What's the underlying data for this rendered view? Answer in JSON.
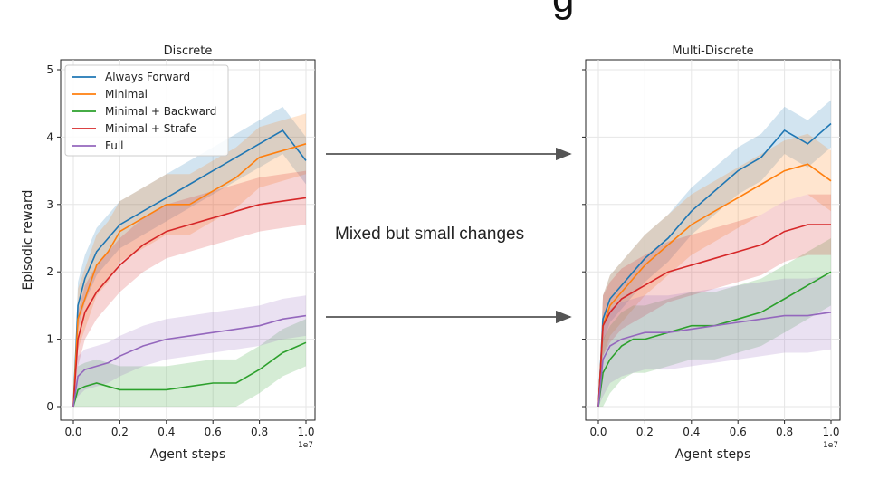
{
  "annotation": "Mixed but small changes",
  "title_fragment": "g",
  "chart_data": [
    {
      "type": "line",
      "title": "Discrete",
      "xlabel": "Agent steps",
      "ylabel": "Episodic reward",
      "x_multiplier": "1e7",
      "xlim": [
        0,
        1.0
      ],
      "ylim": [
        0,
        5
      ],
      "xticks": [
        "0.0",
        "0.2",
        "0.4",
        "0.6",
        "0.8",
        "1.0"
      ],
      "yticks": [
        "0",
        "1",
        "2",
        "3",
        "4",
        "5"
      ],
      "grid": true,
      "legend_position": "top-left",
      "x": [
        0.0,
        0.02,
        0.05,
        0.1,
        0.15,
        0.2,
        0.3,
        0.4,
        0.5,
        0.6,
        0.7,
        0.8,
        0.9,
        1.0
      ],
      "series": [
        {
          "name": "Always Forward",
          "color": "#1f77b4",
          "values": [
            0.0,
            1.5,
            1.9,
            2.3,
            2.5,
            2.7,
            2.9,
            3.1,
            3.3,
            3.5,
            3.7,
            3.9,
            4.1,
            3.65
          ],
          "band": 0.35
        },
        {
          "name": "Minimal",
          "color": "#ff7f0e",
          "values": [
            0.0,
            1.3,
            1.6,
            2.1,
            2.3,
            2.6,
            2.8,
            3.0,
            3.0,
            3.2,
            3.4,
            3.7,
            3.8,
            3.9
          ],
          "band": 0.45
        },
        {
          "name": "Minimal + Backward",
          "color": "#2ca02c",
          "values": [
            0.0,
            0.25,
            0.3,
            0.35,
            0.3,
            0.25,
            0.25,
            0.25,
            0.3,
            0.35,
            0.35,
            0.55,
            0.8,
            0.95
          ],
          "band": 0.35
        },
        {
          "name": "Minimal + Strafe",
          "color": "#d62728",
          "values": [
            0.0,
            1.0,
            1.4,
            1.7,
            1.9,
            2.1,
            2.4,
            2.6,
            2.7,
            2.8,
            2.9,
            3.0,
            3.05,
            3.1
          ],
          "band": 0.4
        },
        {
          "name": "Full",
          "color": "#9467bd",
          "values": [
            0.0,
            0.45,
            0.55,
            0.6,
            0.65,
            0.75,
            0.9,
            1.0,
            1.05,
            1.1,
            1.15,
            1.2,
            1.3,
            1.35
          ],
          "band": 0.3
        }
      ]
    },
    {
      "type": "line",
      "title": "Multi-Discrete",
      "xlabel": "Agent steps",
      "ylabel": "",
      "x_multiplier": "1e7",
      "xlim": [
        0,
        1.0
      ],
      "ylim": [
        0,
        5
      ],
      "xticks": [
        "0.0",
        "0.2",
        "0.4",
        "0.6",
        "0.8",
        "1.0"
      ],
      "yticks": [],
      "grid": true,
      "x": [
        0.0,
        0.02,
        0.05,
        0.1,
        0.15,
        0.2,
        0.3,
        0.4,
        0.5,
        0.6,
        0.7,
        0.8,
        0.9,
        1.0
      ],
      "series": [
        {
          "name": "Always Forward",
          "color": "#1f77b4",
          "values": [
            0.0,
            1.3,
            1.6,
            1.8,
            2.0,
            2.2,
            2.5,
            2.9,
            3.2,
            3.5,
            3.7,
            4.1,
            3.9,
            4.2
          ],
          "band": 0.35
        },
        {
          "name": "Minimal",
          "color": "#ff7f0e",
          "values": [
            0.0,
            1.2,
            1.5,
            1.7,
            1.9,
            2.1,
            2.4,
            2.7,
            2.9,
            3.1,
            3.3,
            3.5,
            3.6,
            3.35
          ],
          "band": 0.45
        },
        {
          "name": "Minimal + Backward",
          "color": "#2ca02c",
          "values": [
            0.0,
            0.5,
            0.7,
            0.9,
            1.0,
            1.0,
            1.1,
            1.2,
            1.2,
            1.3,
            1.4,
            1.6,
            1.8,
            2.0
          ],
          "band": 0.5
        },
        {
          "name": "Minimal + Strafe",
          "color": "#d62728",
          "values": [
            0.0,
            1.2,
            1.4,
            1.6,
            1.7,
            1.8,
            2.0,
            2.1,
            2.2,
            2.3,
            2.4,
            2.6,
            2.7,
            2.7
          ],
          "band": 0.45
        },
        {
          "name": "Full",
          "color": "#9467bd",
          "values": [
            0.0,
            0.7,
            0.9,
            1.0,
            1.05,
            1.1,
            1.1,
            1.15,
            1.2,
            1.25,
            1.3,
            1.35,
            1.35,
            1.4
          ],
          "band": 0.55
        }
      ]
    }
  ]
}
